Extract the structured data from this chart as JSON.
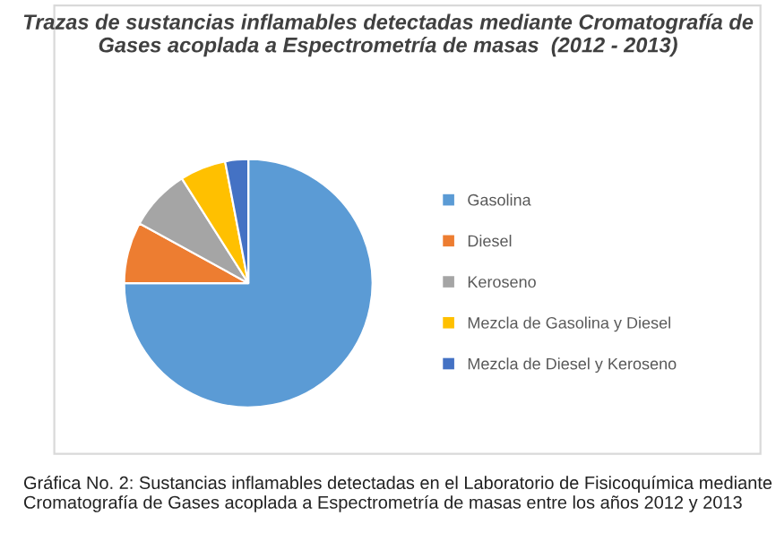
{
  "chart_data": {
    "type": "pie",
    "title": "Trazas de sustancias inflamables detectadas mediante Cromatografía de Gases acoplada a Espectrometría de masas  (2012 - 2013)",
    "categories": [
      "Gasolina",
      "Diesel",
      "Keroseno",
      "Mezcla de Gasolina y Diesel",
      "Mezcla de Diesel y Keroseno"
    ],
    "values": [
      75,
      8,
      8,
      6,
      3
    ],
    "colors": [
      "#5b9bd5",
      "#ed7d31",
      "#a5a5a5",
      "#ffc000",
      "#4472c4"
    ],
    "legend": "right",
    "annotations": [
      "Gráfica No. 2: Sustancias inflamables detectadas en el Laboratorio de Fisicoquímica mediante Cromatografía de Gases acoplada a Espectrometría de masas entre los años 2012 y 2013"
    ]
  }
}
